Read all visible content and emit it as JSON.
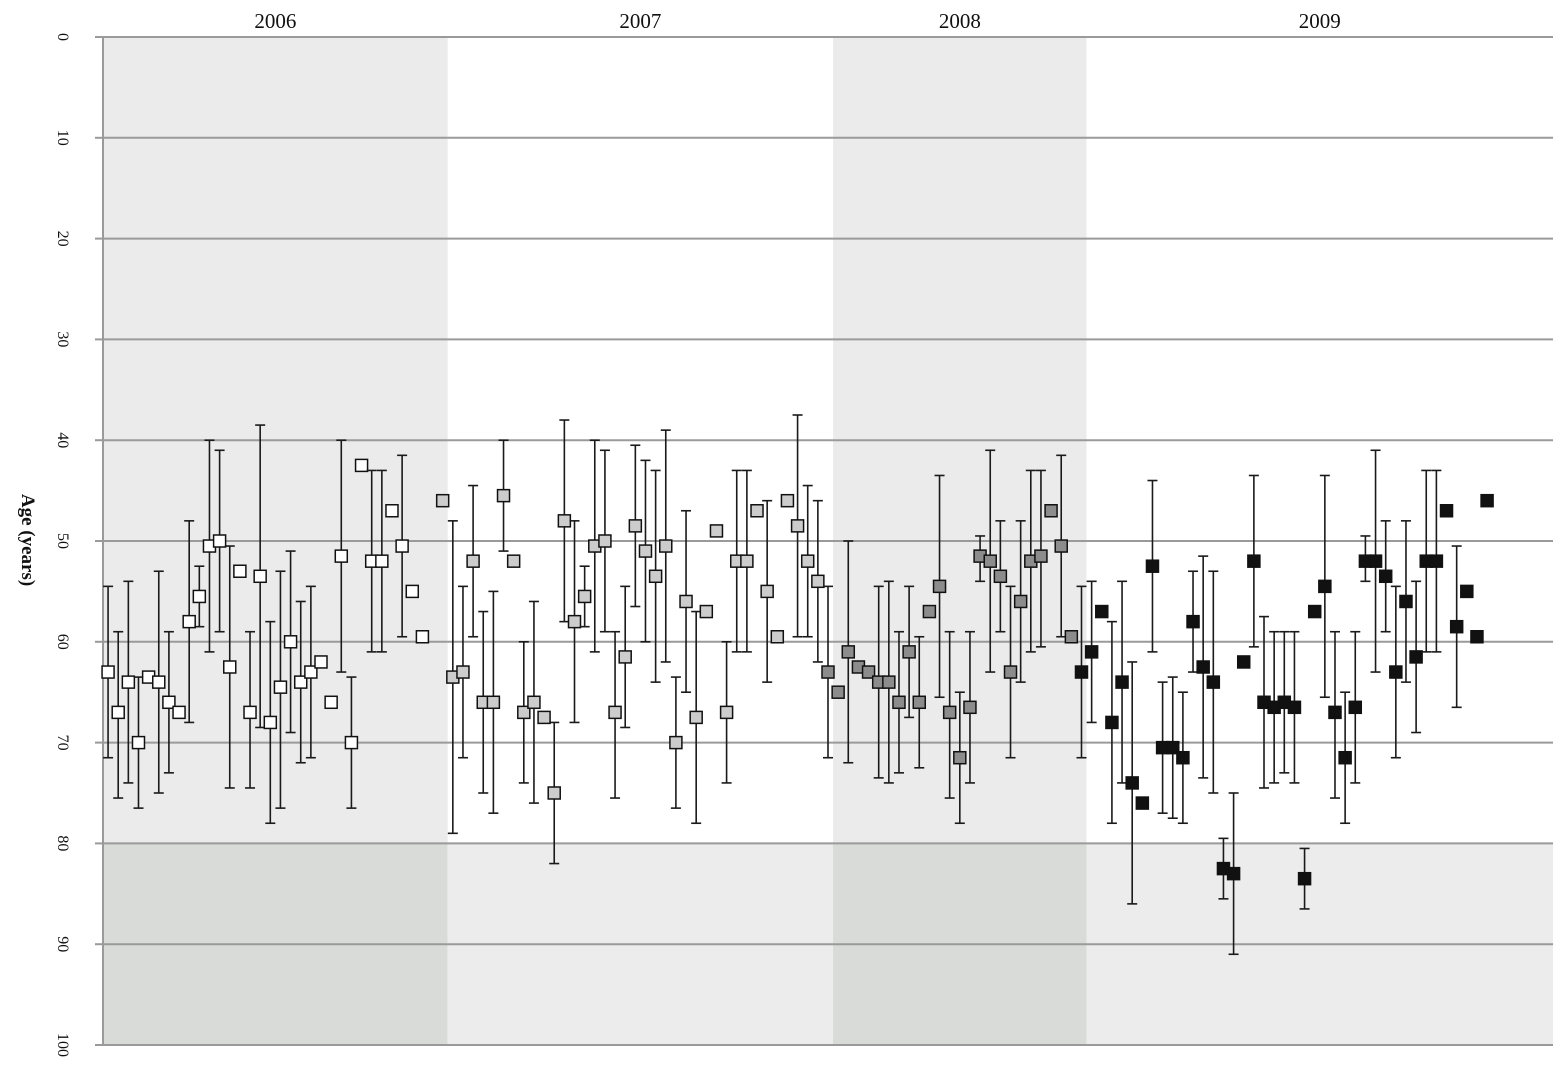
{
  "chart_data": {
    "type": "scatter",
    "title": "",
    "xlabel": "",
    "ylabel": "Age (years)",
    "ylim": [
      0,
      100
    ],
    "y_inverted": true,
    "y_ticks": [
      "0",
      "10",
      "20",
      "30",
      "40",
      "50",
      "60",
      "70",
      "80",
      "90",
      "100"
    ],
    "grid": true,
    "x_count": 143,
    "shaded_age_band": [
      80,
      100
    ],
    "years": [
      {
        "label": "2006",
        "start": 0,
        "end": 34,
        "shaded": true
      },
      {
        "label": "2007",
        "start": 34,
        "end": 72,
        "shaded": false
      },
      {
        "label": "2008",
        "start": 72,
        "end": 97,
        "shaded": true
      },
      {
        "label": "2009",
        "start": 97,
        "end": 143,
        "shaded": false
      }
    ],
    "series": [
      {
        "fill": "#ffffff",
        "points": [
          {
            "x": 1,
            "y": 63,
            "lo": 54.5,
            "hi": 71.5
          },
          {
            "x": 2,
            "y": 67,
            "lo": 59,
            "hi": 75.5
          },
          {
            "x": 3,
            "y": 64,
            "lo": 54,
            "hi": 74
          },
          {
            "x": 4,
            "y": 70,
            "lo": 63.5,
            "hi": 76.5
          },
          {
            "x": 5,
            "y": 63.5
          },
          {
            "x": 6,
            "y": 64,
            "lo": 53,
            "hi": 75
          },
          {
            "x": 7,
            "y": 66,
            "lo": 59,
            "hi": 73
          },
          {
            "x": 8,
            "y": 67
          },
          {
            "x": 9,
            "y": 58,
            "lo": 48,
            "hi": 68
          },
          {
            "x": 10,
            "y": 55.5,
            "lo": 52.5,
            "hi": 58.5
          },
          {
            "x": 11,
            "y": 50.5,
            "lo": 40,
            "hi": 61
          },
          {
            "x": 12,
            "y": 50,
            "lo": 41,
            "hi": 59
          },
          {
            "x": 13,
            "y": 62.5,
            "lo": 50.5,
            "hi": 74.5
          },
          {
            "x": 14,
            "y": 53
          },
          {
            "x": 15,
            "y": 67,
            "lo": 59,
            "hi": 74.5
          },
          {
            "x": 16,
            "y": 53.5,
            "lo": 38.5,
            "hi": 68.5
          },
          {
            "x": 17,
            "y": 68,
            "lo": 58,
            "hi": 78
          },
          {
            "x": 18,
            "y": 64.5,
            "lo": 53,
            "hi": 76.5
          },
          {
            "x": 19,
            "y": 60,
            "lo": 51,
            "hi": 69
          },
          {
            "x": 20,
            "y": 64,
            "lo": 56,
            "hi": 72
          },
          {
            "x": 21,
            "y": 63,
            "lo": 54.5,
            "hi": 71.5
          },
          {
            "x": 22,
            "y": 62
          },
          {
            "x": 23,
            "y": 66
          },
          {
            "x": 24,
            "y": 51.5,
            "lo": 40,
            "hi": 63
          },
          {
            "x": 25,
            "y": 70,
            "lo": 63.5,
            "hi": 76.5
          },
          {
            "x": 26,
            "y": 42.5
          },
          {
            "x": 27,
            "y": 52,
            "lo": 43,
            "hi": 61
          },
          {
            "x": 28,
            "y": 52,
            "lo": 43,
            "hi": 61
          },
          {
            "x": 29,
            "y": 47
          },
          {
            "x": 30,
            "y": 50.5,
            "lo": 41.5,
            "hi": 59.5
          },
          {
            "x": 31,
            "y": 55
          },
          {
            "x": 32,
            "y": 59.5
          }
        ]
      },
      {
        "fill": "#cccccc",
        "points": [
          {
            "x": 34,
            "y": 46
          },
          {
            "x": 35,
            "y": 63.5,
            "lo": 48,
            "hi": 79
          },
          {
            "x": 36,
            "y": 63,
            "lo": 54.5,
            "hi": 71.5
          },
          {
            "x": 37,
            "y": 52,
            "lo": 44.5,
            "hi": 59.5
          },
          {
            "x": 38,
            "y": 66,
            "lo": 57,
            "hi": 75
          },
          {
            "x": 39,
            "y": 66,
            "lo": 55,
            "hi": 77
          },
          {
            "x": 40,
            "y": 45.5,
            "lo": 40,
            "hi": 51
          },
          {
            "x": 41,
            "y": 52
          },
          {
            "x": 42,
            "y": 67,
            "lo": 60,
            "hi": 74
          },
          {
            "x": 43,
            "y": 66,
            "lo": 56,
            "hi": 76
          },
          {
            "x": 44,
            "y": 67.5
          },
          {
            "x": 45,
            "y": 75,
            "lo": 68,
            "hi": 82
          },
          {
            "x": 46,
            "y": 48,
            "lo": 38,
            "hi": 58
          },
          {
            "x": 47,
            "y": 58,
            "lo": 48,
            "hi": 68
          },
          {
            "x": 48,
            "y": 55.5,
            "lo": 52.5,
            "hi": 58.5
          },
          {
            "x": 49,
            "y": 50.5,
            "lo": 40,
            "hi": 61
          },
          {
            "x": 50,
            "y": 50,
            "lo": 41,
            "hi": 59
          },
          {
            "x": 51,
            "y": 67,
            "lo": 59,
            "hi": 75.5
          },
          {
            "x": 52,
            "y": 61.5,
            "lo": 54.5,
            "hi": 68.5
          },
          {
            "x": 53,
            "y": 48.5,
            "lo": 40.5,
            "hi": 56.5
          },
          {
            "x": 54,
            "y": 51,
            "lo": 42,
            "hi": 60
          },
          {
            "x": 55,
            "y": 53.5,
            "lo": 43,
            "hi": 64
          },
          {
            "x": 56,
            "y": 50.5,
            "lo": 39,
            "hi": 62
          },
          {
            "x": 57,
            "y": 70,
            "lo": 63.5,
            "hi": 76.5
          },
          {
            "x": 58,
            "y": 56,
            "lo": 47,
            "hi": 65
          },
          {
            "x": 59,
            "y": 67.5,
            "lo": 57,
            "hi": 78
          },
          {
            "x": 60,
            "y": 57
          },
          {
            "x": 61,
            "y": 49
          },
          {
            "x": 62,
            "y": 67,
            "lo": 60,
            "hi": 74
          },
          {
            "x": 63,
            "y": 52,
            "lo": 43,
            "hi": 61
          },
          {
            "x": 64,
            "y": 52,
            "lo": 43,
            "hi": 61
          },
          {
            "x": 65,
            "y": 47
          },
          {
            "x": 66,
            "y": 55,
            "lo": 46,
            "hi": 64
          },
          {
            "x": 67,
            "y": 59.5
          },
          {
            "x": 68,
            "y": 46
          },
          {
            "x": 69,
            "y": 48.5,
            "lo": 37.5,
            "hi": 59.5
          },
          {
            "x": 70,
            "y": 52,
            "lo": 44.5,
            "hi": 59.5
          },
          {
            "x": 71,
            "y": 54,
            "lo": 46,
            "hi": 62
          }
        ]
      },
      {
        "fill": "#8c8c8c",
        "points": [
          {
            "x": 72,
            "y": 63,
            "lo": 54.5,
            "hi": 71.5
          },
          {
            "x": 73,
            "y": 65
          },
          {
            "x": 74,
            "y": 61,
            "lo": 50,
            "hi": 72
          },
          {
            "x": 75,
            "y": 62.5
          },
          {
            "x": 76,
            "y": 63
          },
          {
            "x": 77,
            "y": 64,
            "lo": 54.5,
            "hi": 73.5
          },
          {
            "x": 78,
            "y": 64,
            "lo": 54,
            "hi": 74
          },
          {
            "x": 79,
            "y": 66,
            "lo": 59,
            "hi": 73
          },
          {
            "x": 80,
            "y": 61,
            "lo": 54.5,
            "hi": 67.5
          },
          {
            "x": 81,
            "y": 66,
            "lo": 59.5,
            "hi": 72.5
          },
          {
            "x": 82,
            "y": 57
          },
          {
            "x": 83,
            "y": 54.5,
            "lo": 43.5,
            "hi": 65.5
          },
          {
            "x": 84,
            "y": 67,
            "lo": 59,
            "hi": 75.5
          },
          {
            "x": 85,
            "y": 71.5,
            "lo": 65,
            "hi": 78
          },
          {
            "x": 86,
            "y": 66.5,
            "lo": 59,
            "hi": 74
          },
          {
            "x": 87,
            "y": 51.5,
            "lo": 49.5,
            "hi": 54
          },
          {
            "x": 88,
            "y": 52,
            "lo": 41,
            "hi": 63
          },
          {
            "x": 89,
            "y": 53.5,
            "lo": 48,
            "hi": 59
          },
          {
            "x": 90,
            "y": 63,
            "lo": 54.5,
            "hi": 71.5
          },
          {
            "x": 91,
            "y": 56,
            "lo": 48,
            "hi": 64
          },
          {
            "x": 92,
            "y": 52,
            "lo": 43,
            "hi": 61
          },
          {
            "x": 93,
            "y": 51.5,
            "lo": 43,
            "hi": 60.5
          },
          {
            "x": 94,
            "y": 47
          },
          {
            "x": 95,
            "y": 50.5,
            "lo": 41.5,
            "hi": 59.5
          },
          {
            "x": 96,
            "y": 59.5
          }
        ]
      },
      {
        "fill": "#111111",
        "points": [
          {
            "x": 97,
            "y": 63,
            "lo": 54.5,
            "hi": 71.5
          },
          {
            "x": 98,
            "y": 61,
            "lo": 54,
            "hi": 68
          },
          {
            "x": 99,
            "y": 57
          },
          {
            "x": 100,
            "y": 68,
            "lo": 58,
            "hi": 78
          },
          {
            "x": 101,
            "y": 64,
            "lo": 54,
            "hi": 74
          },
          {
            "x": 102,
            "y": 74,
            "lo": 62,
            "hi": 86
          },
          {
            "x": 103,
            "y": 76
          },
          {
            "x": 104,
            "y": 52.5,
            "lo": 44,
            "hi": 61
          },
          {
            "x": 105,
            "y": 70.5,
            "lo": 64,
            "hi": 77
          },
          {
            "x": 106,
            "y": 70.5,
            "lo": 63.5,
            "hi": 77.5
          },
          {
            "x": 107,
            "y": 71.5,
            "lo": 65,
            "hi": 78
          },
          {
            "x": 108,
            "y": 58,
            "lo": 53,
            "hi": 63
          },
          {
            "x": 109,
            "y": 62.5,
            "lo": 51.5,
            "hi": 73.5
          },
          {
            "x": 110,
            "y": 64,
            "lo": 53,
            "hi": 75
          },
          {
            "x": 111,
            "y": 82.5,
            "lo": 79.5,
            "hi": 85.5
          },
          {
            "x": 112,
            "y": 83,
            "lo": 75,
            "hi": 91
          },
          {
            "x": 113,
            "y": 62
          },
          {
            "x": 114,
            "y": 52,
            "lo": 43.5,
            "hi": 60.5
          },
          {
            "x": 115,
            "y": 66,
            "lo": 57.5,
            "hi": 74.5
          },
          {
            "x": 116,
            "y": 66.5,
            "lo": 59,
            "hi": 74
          },
          {
            "x": 117,
            "y": 66,
            "lo": 59,
            "hi": 73
          },
          {
            "x": 118,
            "y": 66.5,
            "lo": 59,
            "hi": 74
          },
          {
            "x": 119,
            "y": 83.5,
            "lo": 80.5,
            "hi": 86.5
          },
          {
            "x": 120,
            "y": 57
          },
          {
            "x": 121,
            "y": 54.5,
            "lo": 43.5,
            "hi": 65.5
          },
          {
            "x": 122,
            "y": 67,
            "lo": 59,
            "hi": 75.5
          },
          {
            "x": 123,
            "y": 71.5,
            "lo": 65,
            "hi": 78
          },
          {
            "x": 124,
            "y": 66.5,
            "lo": 59,
            "hi": 74
          },
          {
            "x": 125,
            "y": 52,
            "lo": 49.5,
            "hi": 54
          },
          {
            "x": 126,
            "y": 52,
            "lo": 41,
            "hi": 63
          },
          {
            "x": 127,
            "y": 53.5,
            "lo": 48,
            "hi": 59
          },
          {
            "x": 128,
            "y": 63,
            "lo": 54.5,
            "hi": 71.5
          },
          {
            "x": 129,
            "y": 56,
            "lo": 48,
            "hi": 64
          },
          {
            "x": 130,
            "y": 61.5,
            "lo": 54,
            "hi": 69
          },
          {
            "x": 131,
            "y": 52,
            "lo": 43,
            "hi": 61
          },
          {
            "x": 132,
            "y": 52,
            "lo": 43,
            "hi": 61
          },
          {
            "x": 133,
            "y": 47
          },
          {
            "x": 134,
            "y": 58.5,
            "lo": 50.5,
            "hi": 66.5
          },
          {
            "x": 135,
            "y": 55
          },
          {
            "x": 136,
            "y": 59.5
          },
          {
            "x": 137,
            "y": 46
          }
        ]
      }
    ]
  }
}
